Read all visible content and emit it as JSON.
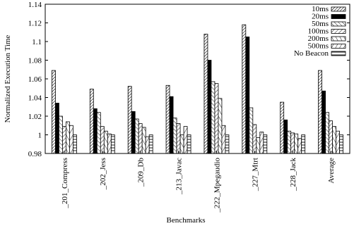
{
  "chart_data": {
    "type": "bar",
    "title": "",
    "xlabel": "Benchmarks",
    "ylabel": "Normalized Execution Time",
    "ylim": [
      0.98,
      1.14
    ],
    "yticks": [
      "0.98",
      "1",
      "1.02",
      "1.04",
      "1.06",
      "1.08",
      "1.1",
      "1.12",
      "1.14"
    ],
    "grid": false,
    "legend_position": "top-right",
    "categories": [
      "_201_Compress",
      "_202_Jess",
      "_209_Db",
      "_213_Javac",
      "_222_Mpegaudio",
      "_227_Mtrt",
      "_228_Jack",
      "Average"
    ],
    "series": [
      {
        "name": "10ms",
        "pattern": "dense-diagonal",
        "values": [
          1.069,
          1.049,
          1.052,
          1.053,
          1.108,
          1.118,
          1.035,
          1.069
        ]
      },
      {
        "name": "20ms",
        "pattern": "solid-black",
        "values": [
          1.034,
          1.028,
          1.025,
          1.041,
          1.08,
          1.105,
          1.016,
          1.047
        ]
      },
      {
        "name": "50ms",
        "pattern": "diagonal",
        "values": [
          1.02,
          1.024,
          1.017,
          1.018,
          1.057,
          1.029,
          1.004,
          1.024
        ]
      },
      {
        "name": "100ms",
        "pattern": "diagonal",
        "values": [
          1.009,
          1.009,
          1.012,
          1.012,
          1.055,
          1.011,
          1.002,
          1.015
        ]
      },
      {
        "name": "200ms",
        "pattern": "diagonal",
        "values": [
          1.014,
          1.004,
          1.008,
          1.0,
          1.039,
          0.997,
          1.001,
          1.009
        ]
      },
      {
        "name": "500ms",
        "pattern": "diagonal",
        "values": [
          1.01,
          1.001,
          0.998,
          1.009,
          1.01,
          1.003,
          0.996,
          1.004
        ]
      },
      {
        "name": "No Beacon",
        "pattern": "horizontal",
        "values": [
          1.0,
          1.0,
          1.0,
          1.0,
          1.0,
          1.0,
          1.0,
          1.0
        ]
      }
    ]
  }
}
